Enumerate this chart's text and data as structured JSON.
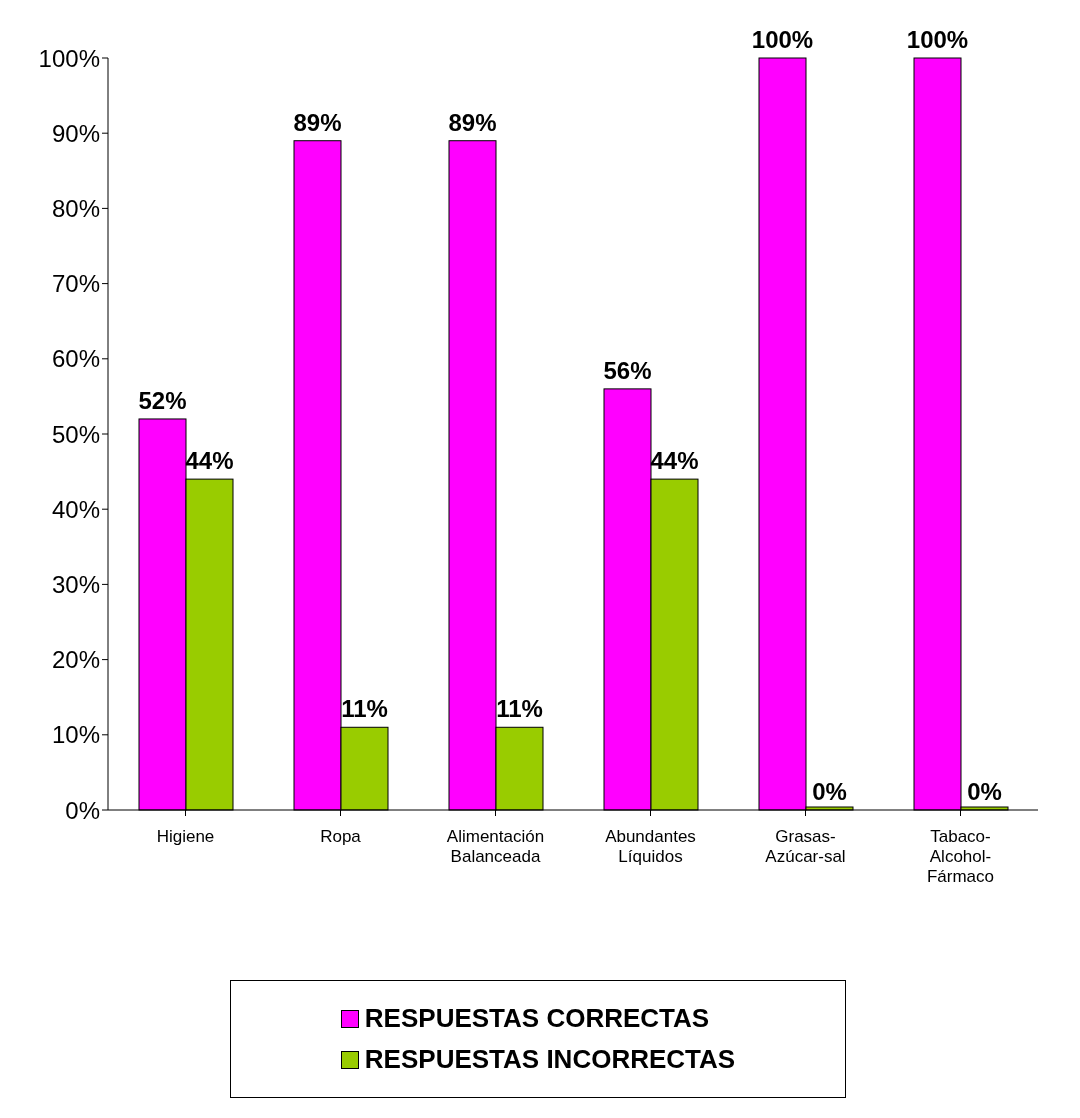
{
  "chart_data": {
    "type": "bar",
    "categories": [
      "Higiene",
      "Ropa",
      "Alimentación Balanceada",
      "Abundantes Líquidos",
      "Grasas-Azúcar-sal",
      "Tabaco-Alcohol-Fármaco"
    ],
    "series": [
      {
        "name": "RESPUESTAS CORRECTAS",
        "color": "#ff00ff",
        "values": [
          52,
          89,
          89,
          56,
          100,
          100
        ],
        "value_labels": [
          "52%",
          "89%",
          "89%",
          "56%",
          "100%",
          "100%"
        ]
      },
      {
        "name": "RESPUESTAS INCORRECTAS",
        "color": "#99cc00",
        "values": [
          44,
          11,
          11,
          44,
          0,
          0
        ],
        "value_labels": [
          "44%",
          "11%",
          "11%",
          "44%",
          "0%",
          "0%"
        ]
      }
    ],
    "ylim": [
      0,
      100
    ],
    "yticks": [
      {
        "value": 0,
        "label": "0%"
      },
      {
        "value": 10,
        "label": "10%"
      },
      {
        "value": 20,
        "label": "20%"
      },
      {
        "value": 30,
        "label": "30%"
      },
      {
        "value": 40,
        "label": "40%"
      },
      {
        "value": 50,
        "label": "50%"
      },
      {
        "value": 60,
        "label": "60%"
      },
      {
        "value": 70,
        "label": "70%"
      },
      {
        "value": 80,
        "label": "80%"
      },
      {
        "value": 90,
        "label": "90%"
      },
      {
        "value": 100,
        "label": "100%"
      }
    ],
    "grid": false,
    "legend": "bottom"
  }
}
